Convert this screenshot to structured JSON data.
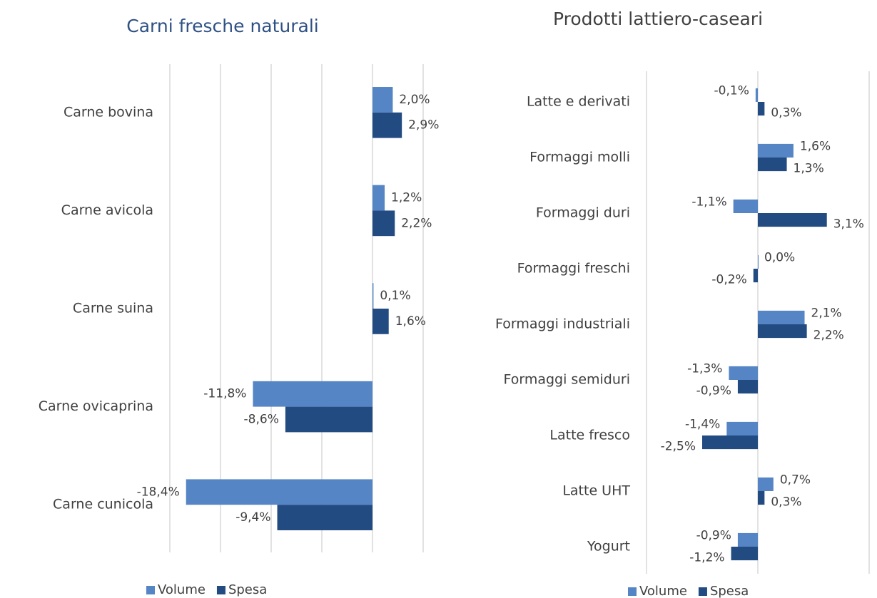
{
  "chart_data": [
    {
      "type": "barh",
      "title": "Carni fresche naturali",
      "title_color": "#2e5184",
      "categories": [
        "Carne bovina",
        "Carne avicola",
        "Carne suina",
        "Carne ovicaprina",
        "Carne cunicola"
      ],
      "series": [
        {
          "name": "Volume",
          "color": "#5585c5",
          "values": [
            2.0,
            1.2,
            0.1,
            -11.8,
            -18.4
          ],
          "value_labels": [
            "2,0%",
            "1,2%",
            "0,1%",
            "-11,8%",
            "-18,4%"
          ]
        },
        {
          "name": "Spesa",
          "color": "#224b82",
          "values": [
            2.9,
            2.2,
            1.6,
            -8.6,
            -9.4
          ],
          "value_labels": [
            "2,9%",
            "2,2%",
            "1,6%",
            "-8,6%",
            "-9,4%"
          ]
        }
      ],
      "xlim": [
        -20,
        5
      ],
      "xticks": [
        -20,
        -15,
        -10,
        -5,
        0,
        5
      ],
      "grid": true,
      "legend": "bottom"
    },
    {
      "type": "barh",
      "title": "Prodotti lattiero-caseari",
      "title_color": "#404040",
      "categories": [
        "Latte e derivati",
        "Formaggi molli",
        "Formaggi duri",
        "Formaggi freschi",
        "Formaggi industriali",
        "Formaggi semiduri",
        "Latte fresco",
        "Latte UHT",
        "Yogurt"
      ],
      "series": [
        {
          "name": "Volume",
          "color": "#5585c5",
          "values": [
            -0.1,
            1.6,
            -1.1,
            0.0,
            2.1,
            -1.3,
            -1.4,
            0.7,
            -0.9
          ],
          "value_labels": [
            "-0,1%",
            "1,6%",
            "-1,1%",
            "0,0%",
            "2,1%",
            "-1,3%",
            "-1,4%",
            "0,7%",
            "-0,9%"
          ]
        },
        {
          "name": "Spesa",
          "color": "#224b82",
          "values": [
            0.3,
            1.3,
            3.1,
            -0.2,
            2.2,
            -0.9,
            -2.5,
            0.3,
            -1.2
          ],
          "value_labels": [
            "0,3%",
            "1,3%",
            "3,1%",
            "-0,2%",
            "2,2%",
            "-0,9%",
            "-2,5%",
            "0,3%",
            "-1,2%"
          ]
        }
      ],
      "xlim": [
        -5,
        5
      ],
      "xticks": [
        -5,
        0,
        5
      ],
      "grid": true,
      "legend": "bottom"
    }
  ]
}
